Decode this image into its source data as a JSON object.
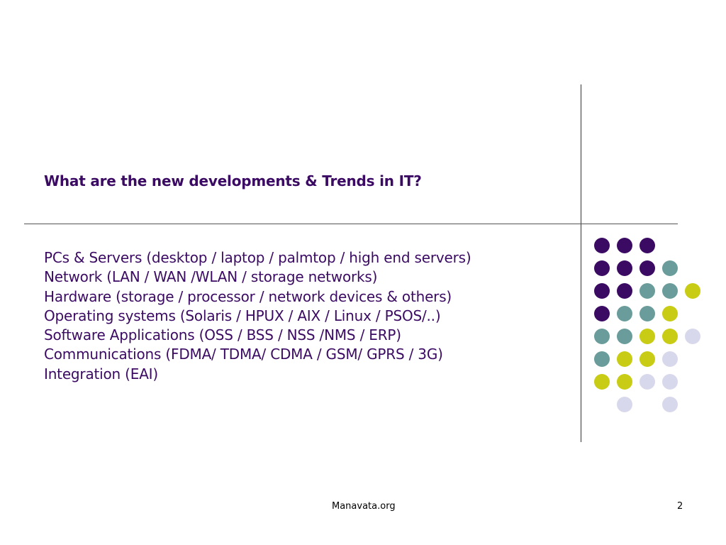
{
  "slide": {
    "title": "What are the new developments & Trends in IT?",
    "bullets": [
      "PCs & Servers (desktop / laptop / palmtop / high end servers)",
      "Network (LAN / WAN /WLAN / storage networks)",
      "Hardware (storage / processor / network devices & others)",
      "Operating systems (Solaris / HPUX / AIX / Linux / PSOS/..)",
      "Software Applications (OSS / BSS / NSS /NMS / ERP)",
      "Communications (FDMA/ TDMA/ CDMA / GSM/ GPRS / 3G)",
      "Integration (EAI)"
    ],
    "footer_site": "Manavata.org",
    "page_number": "2"
  },
  "colors": {
    "purple": "#3b0b63",
    "teal": "#6a9c9c",
    "yellow": "#c9cc14",
    "lavender": "#d8d8ec"
  },
  "dot_grid": [
    [
      "purple",
      "purple",
      "purple",
      null,
      null
    ],
    [
      "purple",
      "purple",
      "purple",
      "teal",
      null
    ],
    [
      "purple",
      "purple",
      "teal",
      "teal",
      "yellow"
    ],
    [
      "purple",
      "teal",
      "teal",
      "yellow",
      null
    ],
    [
      "teal",
      "teal",
      "yellow",
      "yellow",
      "lavender"
    ],
    [
      "teal",
      "yellow",
      "yellow",
      "lavender",
      null
    ],
    [
      "yellow",
      "yellow",
      "lavender",
      "lavender",
      null
    ],
    [
      null,
      "lavender",
      null,
      "lavender",
      null
    ]
  ]
}
